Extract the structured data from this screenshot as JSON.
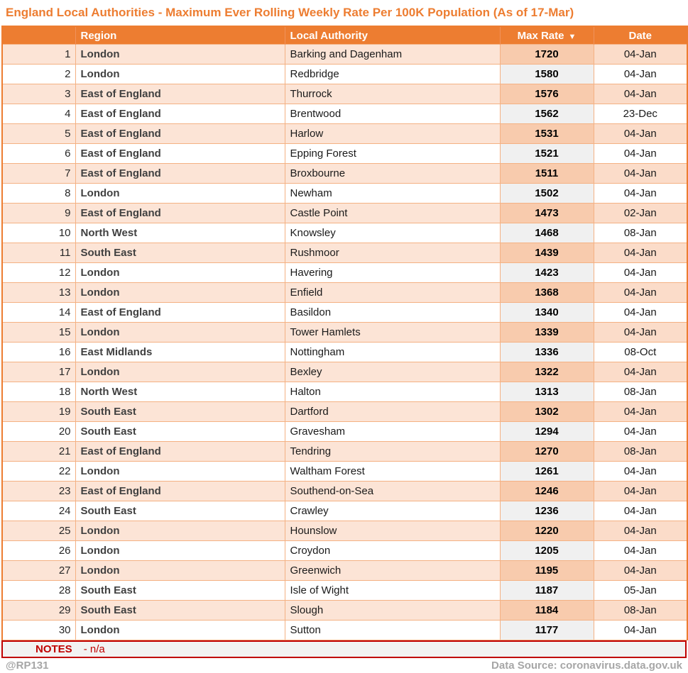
{
  "title": "England Local Authorities - Maximum Ever Rolling Weekly Rate Per 100K Population (As of 17-Mar)",
  "notes": {
    "label": "NOTES",
    "text": "- n/a"
  },
  "footer": {
    "handle": "@RP131",
    "data_source": "Data Source: coronavirus.data.gov.uk"
  },
  "colors": {
    "accent_orange": "#ED7D31",
    "row_shade": "#FCE4D6",
    "rate_shade": "#F8CBAD",
    "date_shade": "#FBDCC9",
    "rate_gray": "#F0F0F0",
    "border_light": "#F4B183",
    "notes_red": "#C00000",
    "footer_gray": "#A6A6A6"
  },
  "chart_data": {
    "type": "table",
    "title": "England Local Authorities - Maximum Ever Rolling Weekly Rate Per 100K Population (As of 17-Mar)",
    "columns": [
      "",
      "Region",
      "Local Authority",
      "Max Rate",
      "Date"
    ],
    "sort": {
      "column": "Max Rate",
      "direction": "descending",
      "icon": "▼"
    },
    "rows": [
      [
        1,
        "London",
        "Barking and Dagenham",
        1720,
        "04-Jan"
      ],
      [
        2,
        "London",
        "Redbridge",
        1580,
        "04-Jan"
      ],
      [
        3,
        "East of England",
        "Thurrock",
        1576,
        "04-Jan"
      ],
      [
        4,
        "East of England",
        "Brentwood",
        1562,
        "23-Dec"
      ],
      [
        5,
        "East of England",
        "Harlow",
        1531,
        "04-Jan"
      ],
      [
        6,
        "East of England",
        "Epping Forest",
        1521,
        "04-Jan"
      ],
      [
        7,
        "East of England",
        "Broxbourne",
        1511,
        "04-Jan"
      ],
      [
        8,
        "London",
        "Newham",
        1502,
        "04-Jan"
      ],
      [
        9,
        "East of England",
        "Castle Point",
        1473,
        "02-Jan"
      ],
      [
        10,
        "North West",
        "Knowsley",
        1468,
        "08-Jan"
      ],
      [
        11,
        "South East",
        "Rushmoor",
        1439,
        "04-Jan"
      ],
      [
        12,
        "London",
        "Havering",
        1423,
        "04-Jan"
      ],
      [
        13,
        "London",
        "Enfield",
        1368,
        "04-Jan"
      ],
      [
        14,
        "East of England",
        "Basildon",
        1340,
        "04-Jan"
      ],
      [
        15,
        "London",
        "Tower Hamlets",
        1339,
        "04-Jan"
      ],
      [
        16,
        "East Midlands",
        "Nottingham",
        1336,
        "08-Oct"
      ],
      [
        17,
        "London",
        "Bexley",
        1322,
        "04-Jan"
      ],
      [
        18,
        "North West",
        "Halton",
        1313,
        "08-Jan"
      ],
      [
        19,
        "South East",
        "Dartford",
        1302,
        "04-Jan"
      ],
      [
        20,
        "South East",
        "Gravesham",
        1294,
        "04-Jan"
      ],
      [
        21,
        "East of England",
        "Tendring",
        1270,
        "08-Jan"
      ],
      [
        22,
        "London",
        "Waltham Forest",
        1261,
        "04-Jan"
      ],
      [
        23,
        "East of England",
        "Southend-on-Sea",
        1246,
        "04-Jan"
      ],
      [
        24,
        "South East",
        "Crawley",
        1236,
        "04-Jan"
      ],
      [
        25,
        "London",
        "Hounslow",
        1220,
        "04-Jan"
      ],
      [
        26,
        "London",
        "Croydon",
        1205,
        "04-Jan"
      ],
      [
        27,
        "London",
        "Greenwich",
        1195,
        "04-Jan"
      ],
      [
        28,
        "South East",
        "Isle of Wight",
        1187,
        "05-Jan"
      ],
      [
        29,
        "South East",
        "Slough",
        1184,
        "08-Jan"
      ],
      [
        30,
        "London",
        "Sutton",
        1177,
        "04-Jan"
      ]
    ]
  }
}
